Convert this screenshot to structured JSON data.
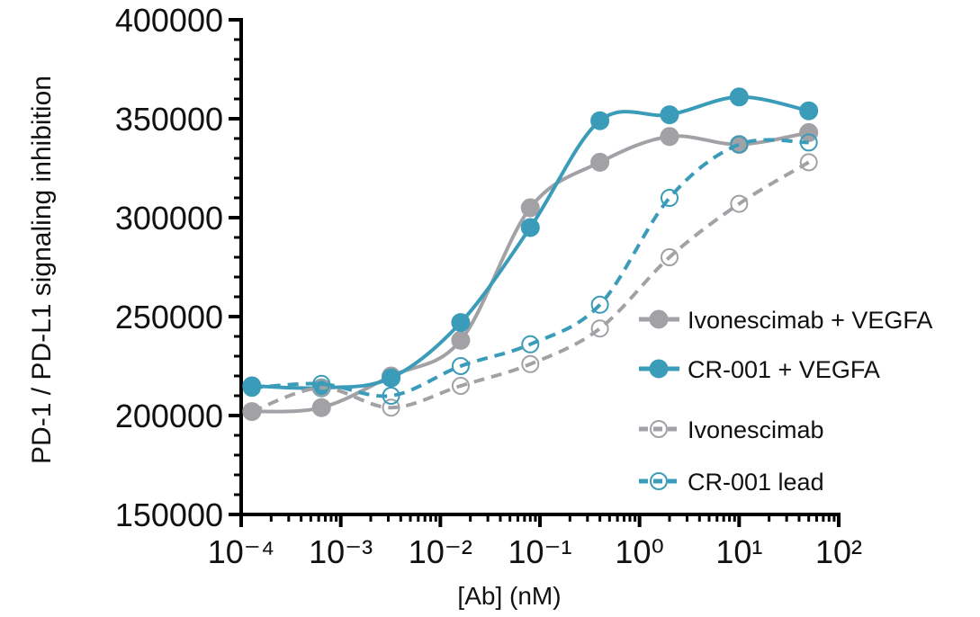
{
  "chart_data": {
    "type": "scatter-line",
    "x_label": "[Ab] (nM)",
    "y_label": "PD-1 / PD-L1 signaling inhibition",
    "log_x": true,
    "x": [
      0.000128,
      0.00064,
      0.0032,
      0.016,
      0.08,
      0.4,
      2,
      10,
      50
    ],
    "xlim": [
      0.0001,
      100
    ],
    "xticks": [
      {
        "value": 0.0001,
        "label": "10⁻⁴"
      },
      {
        "value": 0.001,
        "label": "10⁻³"
      },
      {
        "value": 0.01,
        "label": "10⁻²"
      },
      {
        "value": 0.1,
        "label": "10⁻¹"
      },
      {
        "value": 1,
        "label": "10⁰"
      },
      {
        "value": 10,
        "label": "10¹"
      },
      {
        "value": 100,
        "label": "10²"
      }
    ],
    "ylim": [
      150000,
      400000
    ],
    "yticks": [
      150000,
      200000,
      250000,
      300000,
      350000,
      400000
    ],
    "series": [
      {
        "name": "Ivonescimab + VEGFA",
        "color": "#a2a2a6",
        "marker": "filled",
        "dashed": false,
        "values": [
          202000,
          204000,
          220000,
          238000,
          305000,
          328000,
          341000,
          337000,
          343000
        ]
      },
      {
        "name": "CR-001 + VEGFA",
        "color": "#3a9cb8",
        "marker": "filled",
        "dashed": false,
        "values": [
          215000,
          214000,
          219000,
          247000,
          295000,
          349000,
          352000,
          361000,
          354000
        ]
      },
      {
        "name": "Ivonescimab",
        "color": "#a2a2a6",
        "marker": "open",
        "dashed": true,
        "values": [
          202000,
          214000,
          204000,
          215000,
          226000,
          244000,
          280000,
          307000,
          328000
        ]
      },
      {
        "name": "CR-001 lead",
        "color": "#3a9cb8",
        "marker": "open",
        "dashed": true,
        "values": [
          214000,
          216000,
          210000,
          225000,
          236000,
          256000,
          310000,
          337000,
          338000
        ]
      }
    ]
  }
}
